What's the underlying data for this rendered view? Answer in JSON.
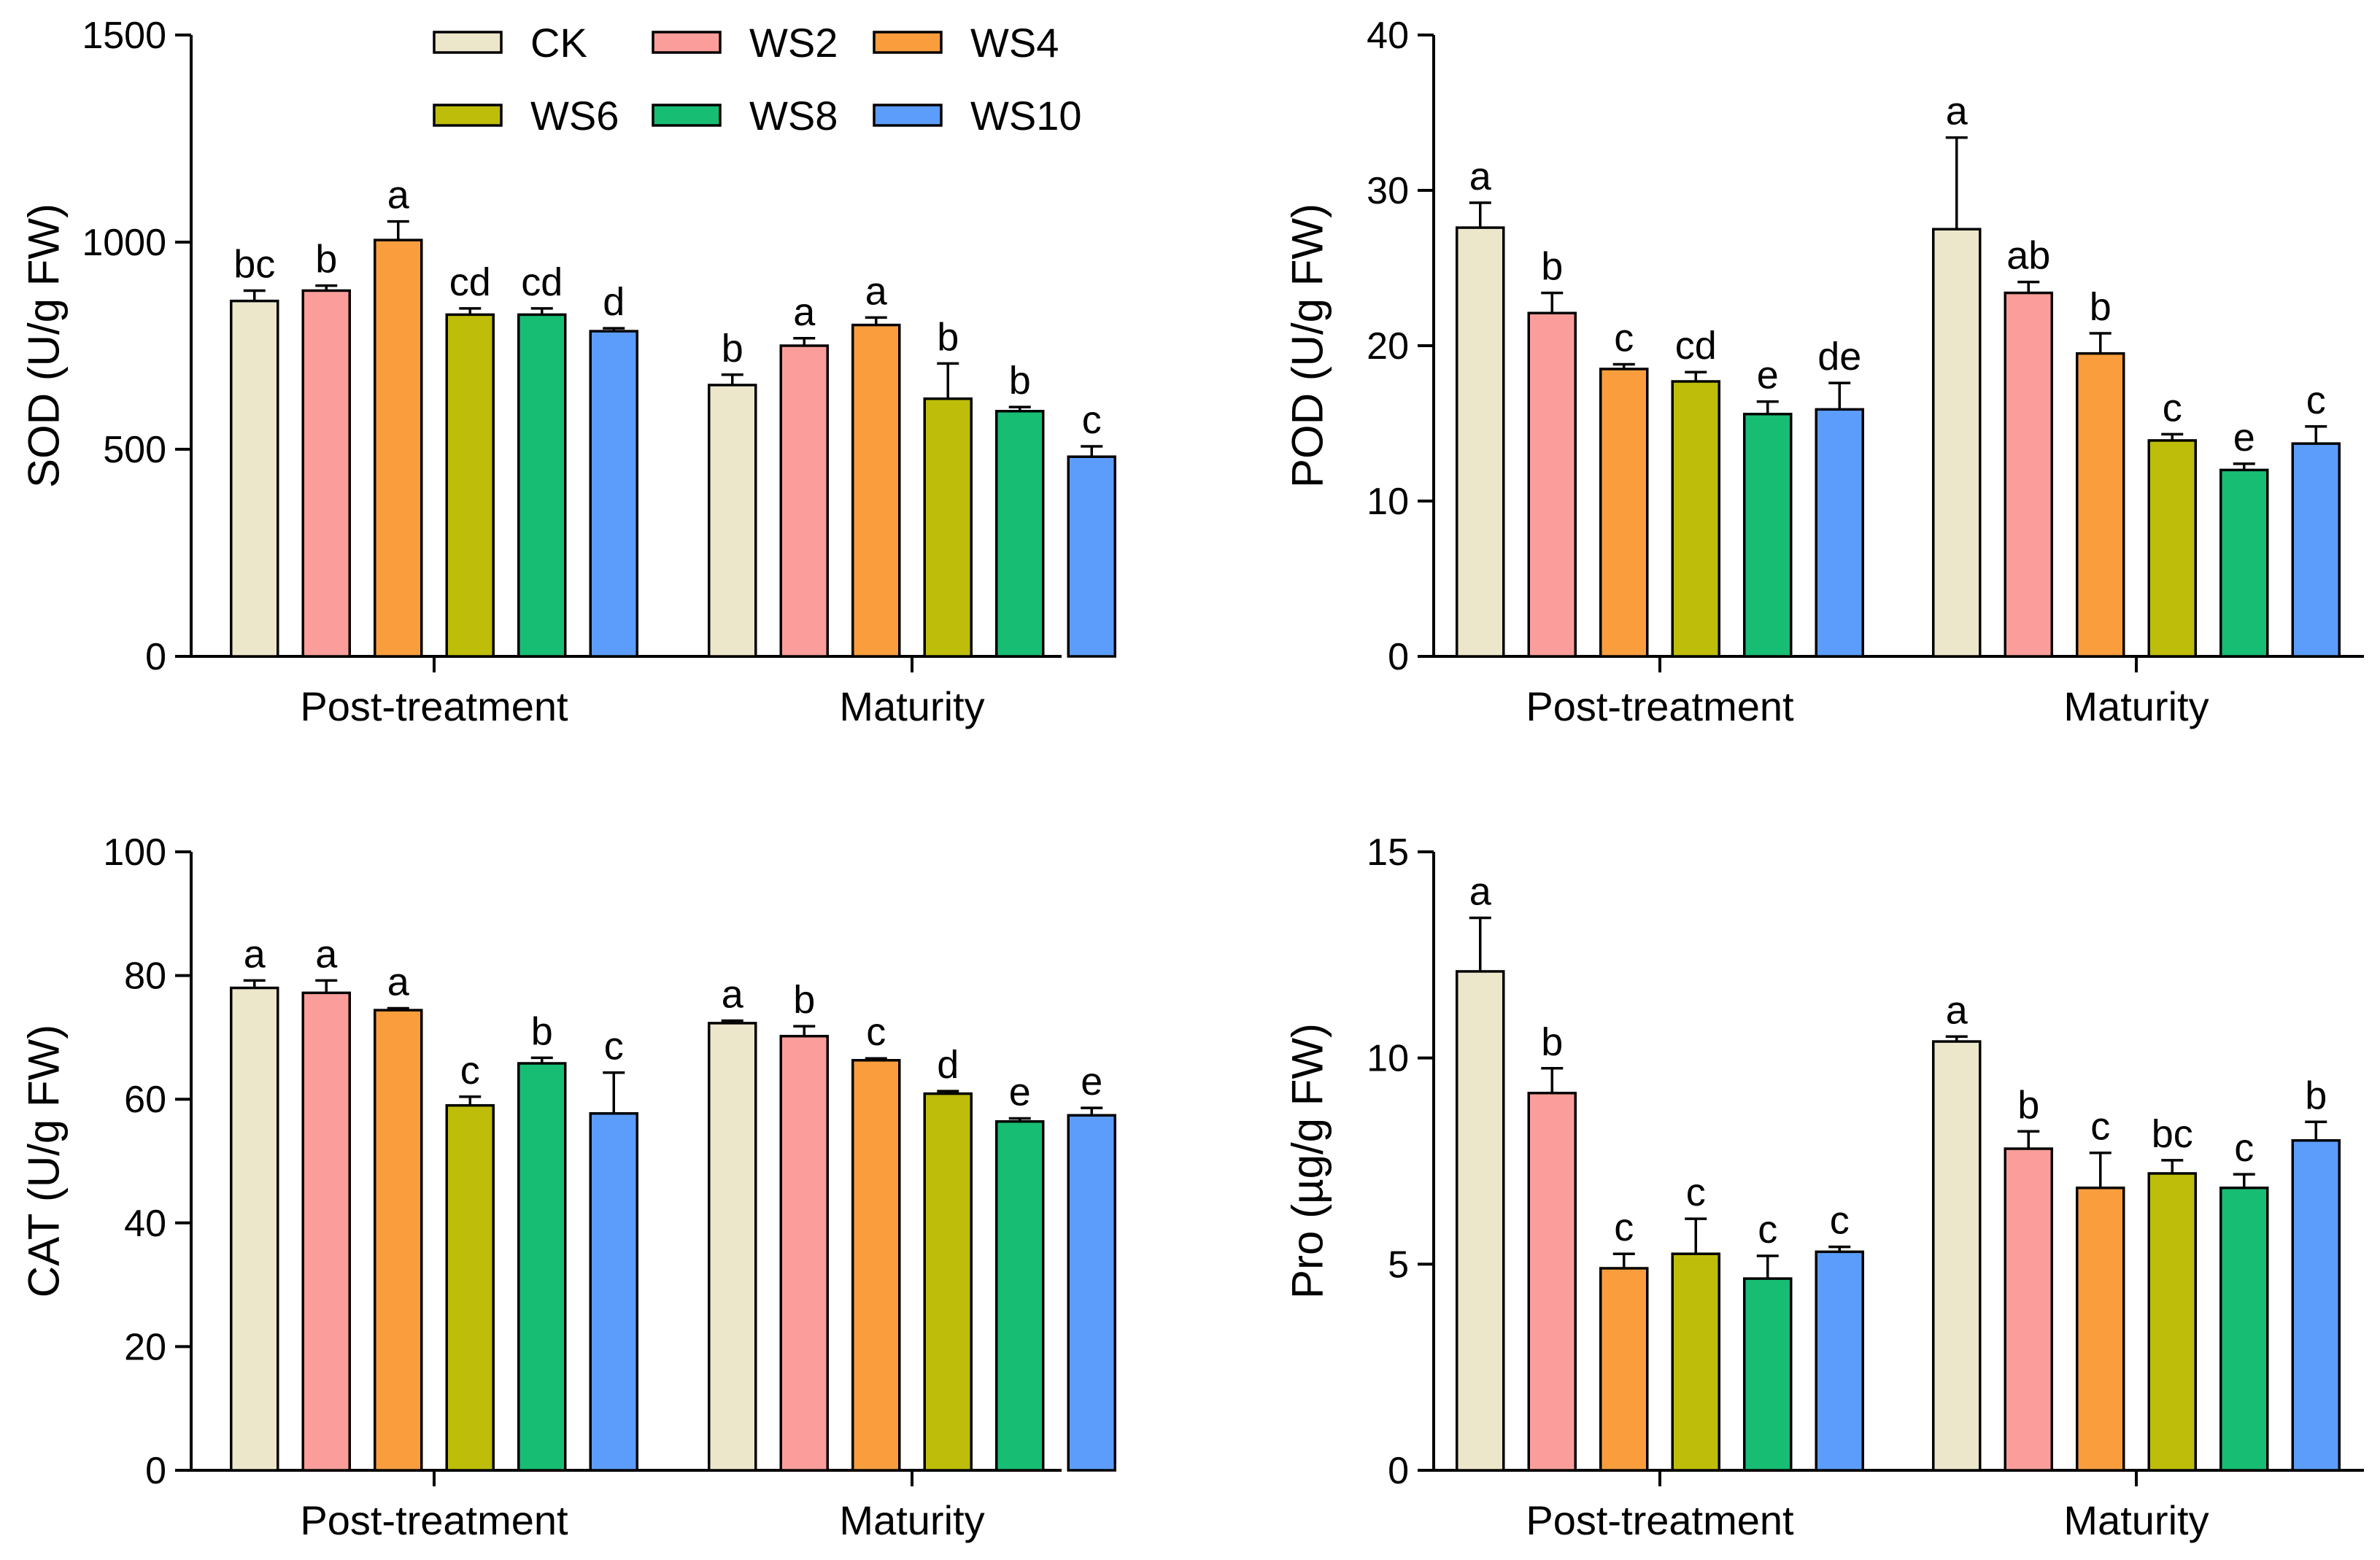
{
  "colors": {
    "CK": "#ece7cb",
    "WS2": "#fb9e9b",
    "WS4": "#fa9e3d",
    "WS6": "#bdbd0a",
    "WS8": "#17bd73",
    "WS10": "#5c9dfc"
  },
  "legend": {
    "items": [
      {
        "name": "CK",
        "color": "#ece7cb"
      },
      {
        "name": "WS2",
        "color": "#fb9e9b"
      },
      {
        "name": "WS4",
        "color": "#fa9e3d"
      },
      {
        "name": "WS6",
        "color": "#bdbd0a"
      },
      {
        "name": "WS8",
        "color": "#17bd73"
      },
      {
        "name": "WS10",
        "color": "#5c9dfc"
      }
    ]
  },
  "chart_data": [
    {
      "type": "bar",
      "id": "sod",
      "ylabel": "SOD (U/g FW)",
      "ylim": [
        0,
        1500
      ],
      "yticks": [
        0,
        500,
        1000,
        1500
      ],
      "categories": [
        "Post-treatment",
        "Maturity"
      ],
      "series": [
        {
          "name": "CK",
          "values": [
            858,
            655
          ],
          "errors": [
            25,
            25
          ],
          "letters": [
            "bc",
            "b"
          ]
        },
        {
          "name": "WS2",
          "values": [
            883,
            750
          ],
          "errors": [
            12,
            18
          ],
          "letters": [
            "b",
            "a"
          ]
        },
        {
          "name": "WS4",
          "values": [
            1005,
            800
          ],
          "errors": [
            45,
            18
          ],
          "letters": [
            "a",
            "a"
          ]
        },
        {
          "name": "WS6",
          "values": [
            825,
            622
          ],
          "errors": [
            15,
            85
          ],
          "letters": [
            "cd",
            "b"
          ]
        },
        {
          "name": "WS8",
          "values": [
            825,
            592
          ],
          "errors": [
            15,
            10
          ],
          "letters": [
            "cd",
            "b"
          ]
        },
        {
          "name": "WS10",
          "values": [
            785,
            482
          ],
          "errors": [
            7,
            25
          ],
          "letters": [
            "d",
            "c"
          ]
        }
      ]
    },
    {
      "type": "bar",
      "id": "pod",
      "ylabel": "POD (U/g FW)",
      "ylim": [
        0,
        40
      ],
      "yticks": [
        0,
        10,
        20,
        30,
        40
      ],
      "categories": [
        "Post-treatment",
        "Maturity"
      ],
      "series": [
        {
          "name": "CK",
          "values": [
            27.6,
            27.5
          ],
          "errors": [
            1.6,
            5.9
          ],
          "letters": [
            "a",
            "a"
          ]
        },
        {
          "name": "WS2",
          "values": [
            22.1,
            23.4
          ],
          "errors": [
            1.3,
            0.7
          ],
          "letters": [
            "b",
            "ab"
          ]
        },
        {
          "name": "WS4",
          "values": [
            18.5,
            19.5
          ],
          "errors": [
            0.3,
            1.3
          ],
          "letters": [
            "c",
            "b"
          ]
        },
        {
          "name": "WS6",
          "values": [
            17.7,
            13.9
          ],
          "errors": [
            0.6,
            0.4
          ],
          "letters": [
            "cd",
            "c"
          ]
        },
        {
          "name": "WS8",
          "values": [
            15.6,
            12.0
          ],
          "errors": [
            0.8,
            0.4
          ],
          "letters": [
            "e",
            "e"
          ]
        },
        {
          "name": "WS10",
          "values": [
            15.9,
            13.7
          ],
          "errors": [
            1.7,
            1.1
          ],
          "letters": [
            "de",
            "c"
          ]
        }
      ]
    },
    {
      "type": "bar",
      "id": "cat",
      "ylabel": "CAT (U/g FW)",
      "ylim": [
        0,
        100
      ],
      "yticks": [
        0,
        20,
        40,
        60,
        80,
        100
      ],
      "categories": [
        "Post-treatment",
        "Maturity"
      ],
      "series": [
        {
          "name": "CK",
          "values": [
            78.0,
            72.3
          ],
          "errors": [
            1.2,
            0.4
          ],
          "letters": [
            "a",
            "a"
          ]
        },
        {
          "name": "WS2",
          "values": [
            77.2,
            70.2
          ],
          "errors": [
            2.0,
            1.6
          ],
          "letters": [
            "a",
            "b"
          ]
        },
        {
          "name": "WS4",
          "values": [
            74.4,
            66.3
          ],
          "errors": [
            0.3,
            0.3
          ],
          "letters": [
            "a",
            "c"
          ]
        },
        {
          "name": "WS6",
          "values": [
            59.0,
            60.9
          ],
          "errors": [
            1.4,
            0.4
          ],
          "letters": [
            "c",
            "d"
          ]
        },
        {
          "name": "WS8",
          "values": [
            65.8,
            56.4
          ],
          "errors": [
            0.9,
            0.5
          ],
          "letters": [
            "b",
            "e"
          ]
        },
        {
          "name": "WS10",
          "values": [
            57.7,
            57.4
          ],
          "errors": [
            6.6,
            1.2
          ],
          "letters": [
            "c",
            "e"
          ]
        }
      ]
    },
    {
      "type": "bar",
      "id": "pro",
      "ylabel": "Pro (µg/g FW)",
      "ylim": [
        0,
        15
      ],
      "yticks": [
        0,
        5,
        10,
        15
      ],
      "categories": [
        "Post-treatment",
        "Maturity"
      ],
      "series": [
        {
          "name": "CK",
          "values": [
            12.1,
            10.4
          ],
          "errors": [
            1.3,
            0.12
          ],
          "letters": [
            "a",
            "a"
          ]
        },
        {
          "name": "WS2",
          "values": [
            9.15,
            7.8
          ],
          "errors": [
            0.6,
            0.42
          ],
          "letters": [
            "b",
            "b"
          ]
        },
        {
          "name": "WS4",
          "values": [
            4.9,
            6.85
          ],
          "errors": [
            0.35,
            0.85
          ],
          "letters": [
            "c",
            "c"
          ]
        },
        {
          "name": "WS6",
          "values": [
            5.25,
            7.2
          ],
          "errors": [
            0.85,
            0.32
          ],
          "letters": [
            "c",
            "bc"
          ]
        },
        {
          "name": "WS8",
          "values": [
            4.65,
            6.85
          ],
          "errors": [
            0.55,
            0.33
          ],
          "letters": [
            "c",
            "c"
          ]
        },
        {
          "name": "WS10",
          "values": [
            5.3,
            8.0
          ],
          "errors": [
            0.12,
            0.45
          ],
          "letters": [
            "c",
            "b"
          ]
        }
      ]
    }
  ]
}
